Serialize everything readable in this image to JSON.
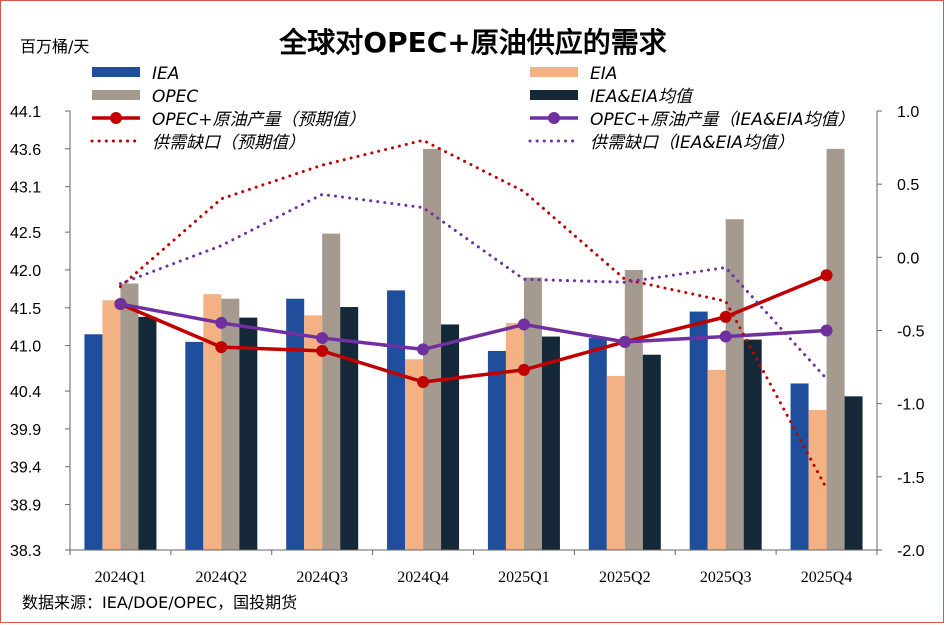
{
  "chart_data": {
    "type": "bar+line",
    "title": "全球对OPEC+原油供应的需求",
    "left_unit": "百万桶/天",
    "source": "数据来源：IEA/DOE/OPEC，国投期货",
    "categories": [
      "2024Q1",
      "2024Q2",
      "2024Q3",
      "2024Q4",
      "2025Q1",
      "2025Q2",
      "2025Q3",
      "2025Q4"
    ],
    "left_axis": {
      "min": 38.3,
      "max": 44.1,
      "ticks": [
        "44.1",
        "43.6",
        "43.1",
        "42.5",
        "42.0",
        "41.5",
        "41.0",
        "40.4",
        "39.9",
        "39.4",
        "38.9",
        "38.3"
      ]
    },
    "right_axis": {
      "min": -2.0,
      "max": 1.0,
      "ticks": [
        "1.0",
        "0.5",
        "0.0",
        "-0.5",
        "-1.0",
        "-1.5",
        "-2.0"
      ]
    },
    "bar_series": [
      {
        "name": "IEA",
        "color": "#1f4e9c",
        "values": [
          41.15,
          41.05,
          41.62,
          41.73,
          40.93,
          41.1,
          41.45,
          40.5
        ]
      },
      {
        "name": "EIA",
        "color": "#f4b183",
        "values": [
          41.6,
          41.68,
          41.4,
          40.82,
          41.3,
          40.6,
          40.68,
          40.15
        ]
      },
      {
        "name": "OPEC",
        "color": "#a59a90",
        "values": [
          41.82,
          41.62,
          42.48,
          43.6,
          41.9,
          42.0,
          42.67,
          43.6
        ]
      },
      {
        "name": "IEA&EIA均值",
        "color": "#152838",
        "values": [
          41.38,
          41.37,
          41.51,
          41.28,
          41.12,
          40.88,
          41.08,
          40.33
        ]
      }
    ],
    "line_series": [
      {
        "name": "OPEC+原油产量（预期值）",
        "axis": "left",
        "color": "#c00000",
        "style": "solid",
        "marker": true,
        "values": [
          41.55,
          40.98,
          40.93,
          40.52,
          40.68,
          41.05,
          41.38,
          41.93
        ]
      },
      {
        "name": "OPEC+原油产量（IEA&EIA均值）",
        "axis": "left",
        "color": "#7030a0",
        "style": "solid",
        "marker": true,
        "values": [
          41.55,
          41.3,
          41.1,
          40.95,
          41.28,
          41.05,
          41.12,
          41.2
        ]
      },
      {
        "name": "供需缺口（预期值）",
        "axis": "right",
        "color": "#c00000",
        "style": "dotted",
        "marker": false,
        "values": [
          -0.2,
          0.4,
          0.63,
          0.8,
          0.45,
          -0.15,
          -0.3,
          -1.58
        ]
      },
      {
        "name": "供需缺口（IEA&EIA均值）",
        "axis": "right",
        "color": "#7030a0",
        "style": "dotted",
        "marker": false,
        "values": [
          -0.18,
          0.08,
          0.43,
          0.34,
          -0.15,
          -0.17,
          -0.07,
          -0.83
        ]
      }
    ],
    "legend_rows": [
      [
        "IEA",
        "EIA"
      ],
      [
        "OPEC",
        "IEA&EIA均值"
      ],
      [
        "OPEC+原油产量（预期值）",
        "OPEC+原油产量（IEA&EIA均值）"
      ],
      [
        "供需缺口（预期值）",
        "供需缺口（IEA&EIA均值）"
      ]
    ],
    "legend_placement": "top",
    "grid": false
  }
}
